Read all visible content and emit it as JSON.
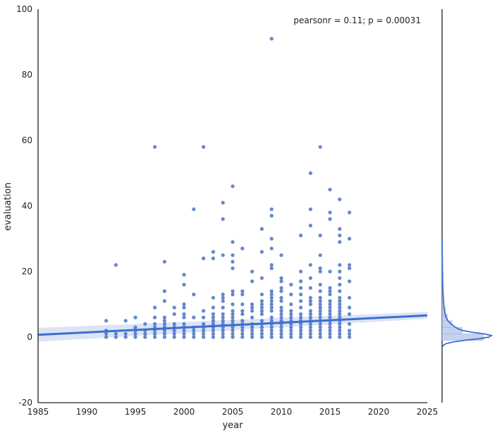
{
  "figure": {
    "annotation": "pearsonr = 0.11; p = 0.00031"
  },
  "chart_data": {
    "type": "scatter",
    "xlabel": "year",
    "ylabel": "evaluation",
    "xlim": [
      1985,
      2025
    ],
    "ylim": [
      -20,
      100
    ],
    "xticks": [
      1985,
      1990,
      1995,
      2000,
      2005,
      2010,
      2015,
      2020,
      2025
    ],
    "yticks": [
      -20,
      0,
      20,
      40,
      60,
      80,
      100
    ],
    "grid": false,
    "colors": {
      "points": "#4a72c4",
      "line": "#3a6fd0",
      "band": "#d3ddf1",
      "marginal_fill": "#b9c8e8"
    },
    "points": [
      [
        1992,
        0
      ],
      [
        1992,
        1
      ],
      [
        1992,
        2
      ],
      [
        1992,
        5
      ],
      [
        1993,
        0
      ],
      [
        1993,
        1
      ],
      [
        1993,
        22
      ],
      [
        1994,
        0
      ],
      [
        1994,
        1
      ],
      [
        1994,
        5
      ],
      [
        1995,
        0
      ],
      [
        1995,
        1
      ],
      [
        1995,
        2
      ],
      [
        1995,
        3
      ],
      [
        1995,
        6
      ],
      [
        1996,
        0
      ],
      [
        1996,
        1
      ],
      [
        1996,
        2
      ],
      [
        1996,
        4
      ],
      [
        1997,
        0
      ],
      [
        1997,
        1
      ],
      [
        1997,
        2
      ],
      [
        1997,
        3
      ],
      [
        1997,
        4
      ],
      [
        1997,
        6
      ],
      [
        1997,
        9
      ],
      [
        1997,
        58
      ],
      [
        1998,
        0
      ],
      [
        1998,
        1
      ],
      [
        1998,
        2
      ],
      [
        1998,
        3
      ],
      [
        1998,
        4
      ],
      [
        1998,
        5
      ],
      [
        1998,
        6
      ],
      [
        1998,
        11
      ],
      [
        1998,
        14
      ],
      [
        1998,
        23
      ],
      [
        1999,
        0
      ],
      [
        1999,
        1
      ],
      [
        1999,
        2
      ],
      [
        1999,
        3
      ],
      [
        1999,
        4
      ],
      [
        1999,
        7
      ],
      [
        1999,
        9
      ],
      [
        2000,
        0
      ],
      [
        2000,
        1
      ],
      [
        2000,
        2
      ],
      [
        2000,
        3
      ],
      [
        2000,
        4
      ],
      [
        2000,
        6
      ],
      [
        2000,
        7
      ],
      [
        2000,
        9
      ],
      [
        2000,
        10
      ],
      [
        2000,
        16
      ],
      [
        2000,
        19
      ],
      [
        2001,
        0
      ],
      [
        2001,
        1
      ],
      [
        2001,
        2
      ],
      [
        2001,
        3
      ],
      [
        2001,
        6
      ],
      [
        2001,
        13
      ],
      [
        2001,
        39
      ],
      [
        2002,
        0
      ],
      [
        2002,
        1
      ],
      [
        2002,
        2
      ],
      [
        2002,
        3
      ],
      [
        2002,
        4
      ],
      [
        2002,
        6
      ],
      [
        2002,
        8
      ],
      [
        2002,
        24
      ],
      [
        2002,
        58
      ],
      [
        2003,
        0
      ],
      [
        2003,
        1
      ],
      [
        2003,
        2
      ],
      [
        2003,
        3
      ],
      [
        2003,
        4
      ],
      [
        2003,
        5
      ],
      [
        2003,
        6
      ],
      [
        2003,
        7
      ],
      [
        2003,
        9
      ],
      [
        2003,
        12
      ],
      [
        2003,
        24
      ],
      [
        2003,
        26
      ],
      [
        2004,
        0
      ],
      [
        2004,
        1
      ],
      [
        2004,
        2
      ],
      [
        2004,
        3
      ],
      [
        2004,
        4
      ],
      [
        2004,
        5
      ],
      [
        2004,
        6
      ],
      [
        2004,
        7
      ],
      [
        2004,
        9
      ],
      [
        2004,
        11
      ],
      [
        2004,
        12
      ],
      [
        2004,
        13
      ],
      [
        2004,
        25
      ],
      [
        2004,
        36
      ],
      [
        2004,
        41
      ],
      [
        2005,
        0
      ],
      [
        2005,
        1
      ],
      [
        2005,
        2
      ],
      [
        2005,
        3
      ],
      [
        2005,
        4
      ],
      [
        2005,
        5
      ],
      [
        2005,
        6
      ],
      [
        2005,
        7
      ],
      [
        2005,
        8
      ],
      [
        2005,
        10
      ],
      [
        2005,
        13
      ],
      [
        2005,
        14
      ],
      [
        2005,
        21
      ],
      [
        2005,
        23
      ],
      [
        2005,
        25
      ],
      [
        2005,
        29
      ],
      [
        2005,
        46
      ],
      [
        2006,
        0
      ],
      [
        2006,
        1
      ],
      [
        2006,
        2
      ],
      [
        2006,
        3
      ],
      [
        2006,
        4
      ],
      [
        2006,
        5
      ],
      [
        2006,
        7
      ],
      [
        2006,
        8
      ],
      [
        2006,
        10
      ],
      [
        2006,
        13
      ],
      [
        2006,
        14
      ],
      [
        2006,
        27
      ],
      [
        2007,
        0
      ],
      [
        2007,
        1
      ],
      [
        2007,
        2
      ],
      [
        2007,
        3
      ],
      [
        2007,
        4
      ],
      [
        2007,
        6
      ],
      [
        2007,
        8
      ],
      [
        2007,
        9
      ],
      [
        2007,
        10
      ],
      [
        2007,
        17
      ],
      [
        2007,
        20
      ],
      [
        2008,
        0
      ],
      [
        2008,
        1
      ],
      [
        2008,
        2
      ],
      [
        2008,
        3
      ],
      [
        2008,
        4
      ],
      [
        2008,
        5
      ],
      [
        2008,
        7
      ],
      [
        2008,
        8
      ],
      [
        2008,
        9
      ],
      [
        2008,
        10
      ],
      [
        2008,
        11
      ],
      [
        2008,
        13
      ],
      [
        2008,
        18
      ],
      [
        2008,
        26
      ],
      [
        2008,
        33
      ],
      [
        2009,
        0
      ],
      [
        2009,
        1
      ],
      [
        2009,
        2
      ],
      [
        2009,
        3
      ],
      [
        2009,
        4
      ],
      [
        2009,
        5
      ],
      [
        2009,
        6
      ],
      [
        2009,
        8
      ],
      [
        2009,
        9
      ],
      [
        2009,
        10
      ],
      [
        2009,
        11
      ],
      [
        2009,
        12
      ],
      [
        2009,
        13
      ],
      [
        2009,
        14
      ],
      [
        2009,
        21
      ],
      [
        2009,
        22
      ],
      [
        2009,
        27
      ],
      [
        2009,
        30
      ],
      [
        2009,
        37
      ],
      [
        2009,
        39
      ],
      [
        2009,
        91
      ],
      [
        2010,
        0
      ],
      [
        2010,
        1
      ],
      [
        2010,
        2
      ],
      [
        2010,
        3
      ],
      [
        2010,
        4
      ],
      [
        2010,
        5
      ],
      [
        2010,
        6
      ],
      [
        2010,
        7
      ],
      [
        2010,
        8
      ],
      [
        2010,
        9
      ],
      [
        2010,
        11
      ],
      [
        2010,
        12
      ],
      [
        2010,
        14
      ],
      [
        2010,
        15
      ],
      [
        2010,
        17
      ],
      [
        2010,
        18
      ],
      [
        2010,
        25
      ],
      [
        2011,
        0
      ],
      [
        2011,
        1
      ],
      [
        2011,
        2
      ],
      [
        2011,
        3
      ],
      [
        2011,
        4
      ],
      [
        2011,
        5
      ],
      [
        2011,
        6
      ],
      [
        2011,
        7
      ],
      [
        2011,
        8
      ],
      [
        2011,
        10
      ],
      [
        2011,
        13
      ],
      [
        2011,
        16
      ],
      [
        2012,
        0
      ],
      [
        2012,
        1
      ],
      [
        2012,
        2
      ],
      [
        2012,
        3
      ],
      [
        2012,
        4
      ],
      [
        2012,
        5
      ],
      [
        2012,
        6
      ],
      [
        2012,
        7
      ],
      [
        2012,
        9
      ],
      [
        2012,
        11
      ],
      [
        2012,
        13
      ],
      [
        2012,
        15
      ],
      [
        2012,
        17
      ],
      [
        2012,
        20
      ],
      [
        2012,
        31
      ],
      [
        2013,
        0
      ],
      [
        2013,
        1
      ],
      [
        2013,
        2
      ],
      [
        2013,
        3
      ],
      [
        2013,
        4
      ],
      [
        2013,
        5
      ],
      [
        2013,
        6
      ],
      [
        2013,
        7
      ],
      [
        2013,
        8
      ],
      [
        2013,
        10
      ],
      [
        2013,
        11
      ],
      [
        2013,
        12
      ],
      [
        2013,
        15
      ],
      [
        2013,
        18
      ],
      [
        2013,
        22
      ],
      [
        2013,
        34
      ],
      [
        2013,
        39
      ],
      [
        2013,
        50
      ],
      [
        2014,
        0
      ],
      [
        2014,
        1
      ],
      [
        2014,
        2
      ],
      [
        2014,
        3
      ],
      [
        2014,
        4
      ],
      [
        2014,
        5
      ],
      [
        2014,
        6
      ],
      [
        2014,
        7
      ],
      [
        2014,
        8
      ],
      [
        2014,
        9
      ],
      [
        2014,
        10
      ],
      [
        2014,
        11
      ],
      [
        2014,
        12
      ],
      [
        2014,
        14
      ],
      [
        2014,
        16
      ],
      [
        2014,
        20
      ],
      [
        2014,
        21
      ],
      [
        2014,
        25
      ],
      [
        2014,
        31
      ],
      [
        2014,
        58
      ],
      [
        2015,
        0
      ],
      [
        2015,
        1
      ],
      [
        2015,
        2
      ],
      [
        2015,
        3
      ],
      [
        2015,
        4
      ],
      [
        2015,
        5
      ],
      [
        2015,
        6
      ],
      [
        2015,
        7
      ],
      [
        2015,
        8
      ],
      [
        2015,
        9
      ],
      [
        2015,
        10
      ],
      [
        2015,
        11
      ],
      [
        2015,
        13
      ],
      [
        2015,
        14
      ],
      [
        2015,
        15
      ],
      [
        2015,
        20
      ],
      [
        2015,
        36
      ],
      [
        2015,
        38
      ],
      [
        2015,
        45
      ],
      [
        2016,
        0
      ],
      [
        2016,
        1
      ],
      [
        2016,
        2
      ],
      [
        2016,
        3
      ],
      [
        2016,
        4
      ],
      [
        2016,
        5
      ],
      [
        2016,
        6
      ],
      [
        2016,
        7
      ],
      [
        2016,
        8
      ],
      [
        2016,
        9
      ],
      [
        2016,
        10
      ],
      [
        2016,
        11
      ],
      [
        2016,
        12
      ],
      [
        2016,
        14
      ],
      [
        2016,
        16
      ],
      [
        2016,
        18
      ],
      [
        2016,
        20
      ],
      [
        2016,
        22
      ],
      [
        2016,
        29
      ],
      [
        2016,
        31
      ],
      [
        2016,
        33
      ],
      [
        2016,
        42
      ],
      [
        2017,
        0
      ],
      [
        2017,
        1
      ],
      [
        2017,
        2
      ],
      [
        2017,
        4
      ],
      [
        2017,
        7
      ],
      [
        2017,
        9
      ],
      [
        2017,
        12
      ],
      [
        2017,
        17
      ],
      [
        2017,
        21
      ],
      [
        2017,
        22
      ],
      [
        2017,
        30
      ],
      [
        2017,
        38
      ]
    ],
    "regression": {
      "x": [
        1985,
        2025
      ],
      "y": [
        0.7,
        6.6
      ],
      "ci_low": [
        -1.4,
        5.6
      ],
      "ci_high": [
        2.8,
        7.7
      ]
    },
    "marginal_y": {
      "bins": [
        [
          -1,
          1,
          0.62
        ],
        [
          1,
          3,
          0.3
        ],
        [
          3,
          5,
          0.15
        ],
        [
          5,
          7,
          0.08
        ],
        [
          7,
          9,
          0.05
        ],
        [
          9,
          11,
          0.03
        ],
        [
          11,
          13,
          0.02
        ],
        [
          13,
          15,
          0.015
        ],
        [
          15,
          17,
          0.012
        ],
        [
          17,
          19,
          0.008
        ],
        [
          19,
          21,
          0.006
        ],
        [
          21,
          23,
          0.004
        ],
        [
          23,
          25,
          0.003
        ]
      ],
      "kde": [
        [
          -3,
          0
        ],
        [
          -2.5,
          0.03
        ],
        [
          -2,
          0.08
        ],
        [
          -1.5,
          0.22
        ],
        [
          -1,
          0.45
        ],
        [
          -0.5,
          0.75
        ],
        [
          0,
          0.95
        ],
        [
          0.5,
          1.0
        ],
        [
          1,
          0.85
        ],
        [
          1.5,
          0.6
        ],
        [
          2,
          0.42
        ],
        [
          2.5,
          0.33
        ],
        [
          3,
          0.27
        ],
        [
          4,
          0.18
        ],
        [
          5,
          0.12
        ],
        [
          6,
          0.08
        ],
        [
          7,
          0.06
        ],
        [
          9,
          0.04
        ],
        [
          11,
          0.03
        ],
        [
          13,
          0.022
        ],
        [
          15,
          0.016
        ],
        [
          17,
          0.012
        ],
        [
          20,
          0.008
        ],
        [
          23,
          0.005
        ],
        [
          26,
          0.003
        ],
        [
          30,
          0.0015
        ]
      ]
    }
  }
}
